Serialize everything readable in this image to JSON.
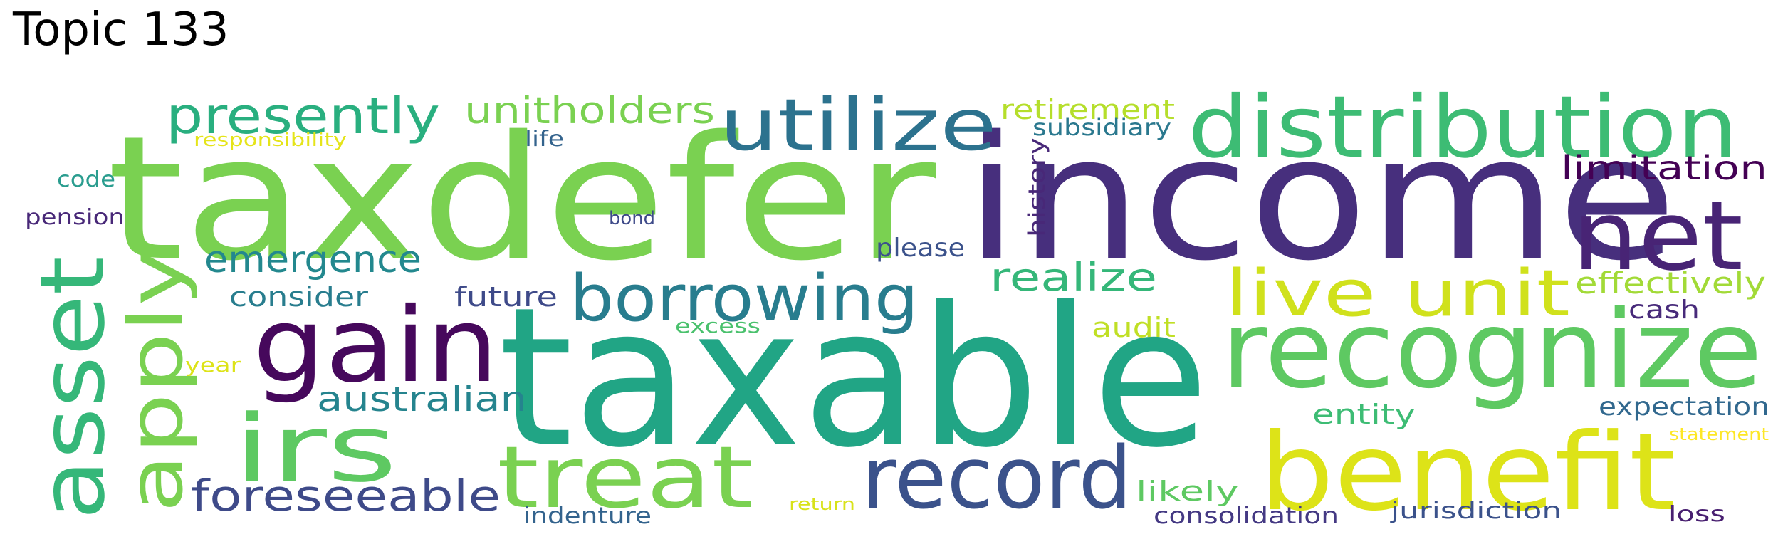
{
  "title": "Topic 133",
  "words": [
    {
      "text": "taxable",
      "color": "#21a585"
    },
    {
      "text": "income",
      "color": "#472f7d"
    },
    {
      "text": "taxdefer",
      "color": "#7ad151"
    },
    {
      "text": "distribution",
      "color": "#3dbc74"
    },
    {
      "text": "benefit",
      "color": "#dde318"
    },
    {
      "text": "recognize",
      "color": "#5ec962"
    },
    {
      "text": "gain",
      "color": "#46085c"
    },
    {
      "text": "asset",
      "color": "#35b779"
    },
    {
      "text": "apply",
      "color": "#7ad151"
    },
    {
      "text": "irs",
      "color": "#5ec962"
    },
    {
      "text": "net",
      "color": "#482475"
    },
    {
      "text": "record",
      "color": "#3b528b"
    },
    {
      "text": "treat",
      "color": "#7ad151"
    },
    {
      "text": "utilize",
      "color": "#2c728e"
    },
    {
      "text": "borrowing",
      "color": "#287d8e"
    },
    {
      "text": "live unit",
      "color": "#d0e11c"
    },
    {
      "text": "presently",
      "color": "#29af7f"
    },
    {
      "text": "foreseeable",
      "color": "#3e4a89"
    },
    {
      "text": "unitholders",
      "color": "#7ad151"
    },
    {
      "text": "emergence",
      "color": "#23888e"
    },
    {
      "text": "australian",
      "color": "#25848e"
    },
    {
      "text": "limitation",
      "color": "#440154"
    },
    {
      "text": "realize",
      "color": "#35b779"
    },
    {
      "text": "effectively",
      "color": "#a2da37"
    },
    {
      "text": "retirement",
      "color": "#b5de2b"
    },
    {
      "text": "expectation",
      "color": "#31688e"
    },
    {
      "text": "entity",
      "color": "#3dbc74"
    },
    {
      "text": "likely",
      "color": "#5ec962"
    },
    {
      "text": "consolidation",
      "color": "#443983"
    },
    {
      "text": "jurisdiction",
      "color": "#3b528b"
    },
    {
      "text": "indenture",
      "color": "#33638d"
    },
    {
      "text": "consider",
      "color": "#287d8e"
    },
    {
      "text": "future",
      "color": "#3e4a89"
    },
    {
      "text": "audit",
      "color": "#c0df25"
    },
    {
      "text": "cash",
      "color": "#472a7a"
    },
    {
      "text": "please",
      "color": "#3b528b"
    },
    {
      "text": "subsidiary",
      "color": "#2a788e"
    },
    {
      "text": "history",
      "color": "#482878"
    },
    {
      "text": "life",
      "color": "#33638d"
    },
    {
      "text": "code",
      "color": "#2a9d8f"
    },
    {
      "text": "pension",
      "color": "#482878"
    },
    {
      "text": "responsibility",
      "color": "#e5e419"
    },
    {
      "text": "bond",
      "color": "#3e4a89"
    },
    {
      "text": "excess",
      "color": "#4ac16d"
    },
    {
      "text": "year",
      "color": "#dde318"
    },
    {
      "text": "return",
      "color": "#d8e219"
    },
    {
      "text": "statement",
      "color": "#fde725"
    },
    {
      "text": "loss",
      "color": "#481f70"
    }
  ]
}
